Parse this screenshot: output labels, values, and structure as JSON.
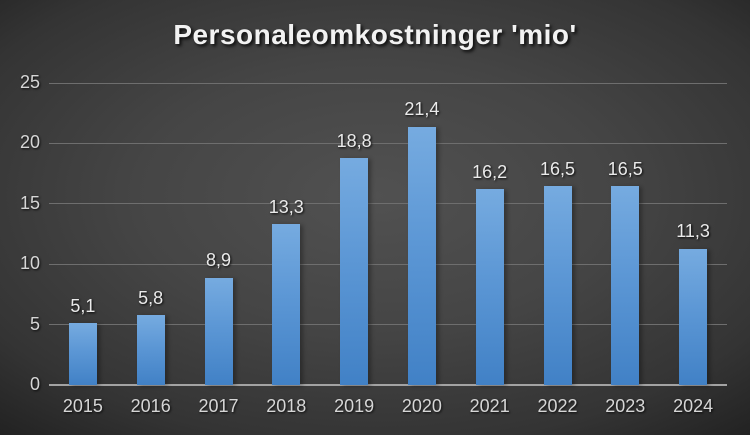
{
  "chart_data": {
    "type": "bar",
    "title": "Personaleomkostninger 'mio'",
    "categories": [
      "2015",
      "2016",
      "2017",
      "2018",
      "2019",
      "2020",
      "2021",
      "2022",
      "2023",
      "2024"
    ],
    "values": [
      5.1,
      5.8,
      8.9,
      13.3,
      18.8,
      21.4,
      16.2,
      16.5,
      16.5,
      11.3
    ],
    "value_labels": [
      "5,1",
      "5,8",
      "8,9",
      "13,3",
      "18,8",
      "21,4",
      "16,2",
      "16,5",
      "16,5",
      "11,3"
    ],
    "xlabel": "",
    "ylabel": "",
    "ylim": [
      0,
      25
    ],
    "yticks": [
      0,
      5,
      10,
      15,
      20,
      25
    ],
    "grid": "horizontal",
    "legend_position": "none",
    "decimal_separator": ",",
    "colors": {
      "bar_top": "#76abe0",
      "bar_bottom": "#4181c6",
      "gridline": "#6e6e6e",
      "axis_line": "#a3a3a3",
      "title_text": "#f2f2f2",
      "tick_text": "#d6d6d6",
      "value_label_text": "#eaeaea",
      "background_center": "#4b4b4b",
      "background_edge": "#101010"
    }
  }
}
